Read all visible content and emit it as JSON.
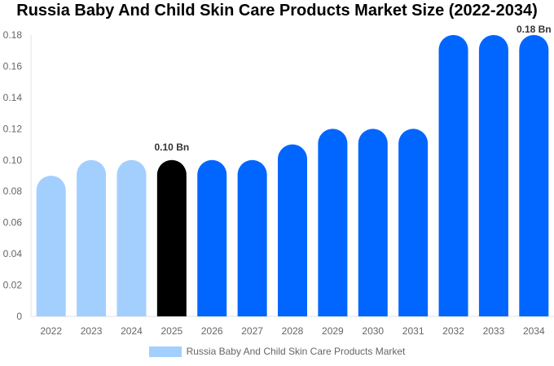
{
  "chart_data": {
    "type": "bar",
    "title": "Russia Baby And Child Skin Care Products Market Size (2022-2034)",
    "categories": [
      "2022",
      "2023",
      "2024",
      "2025",
      "2026",
      "2027",
      "2028",
      "2029",
      "2030",
      "2031",
      "2032",
      "2033",
      "2034"
    ],
    "series": [
      {
        "name": "Russia Baby And Child Skin Care Products Market",
        "values": [
          0.09,
          0.1,
          0.1,
          0.1,
          0.1,
          0.1,
          0.11,
          0.12,
          0.12,
          0.12,
          0.18,
          0.18,
          0.18
        ]
      }
    ],
    "ylim": [
      0,
      0.18
    ],
    "yticks": [
      "0",
      "0.02",
      "0.04",
      "0.06",
      "0.08",
      "0.10",
      "0.12",
      "0.14",
      "0.16",
      "0.18"
    ],
    "data_labels": {
      "2025": "0.10 Bn",
      "2034": "0.18 Bn"
    },
    "colors": {
      "historical": "#a3cfff",
      "current": "#000000",
      "forecast": "#0066ff"
    },
    "legend_position": "bottom",
    "grid": false
  }
}
